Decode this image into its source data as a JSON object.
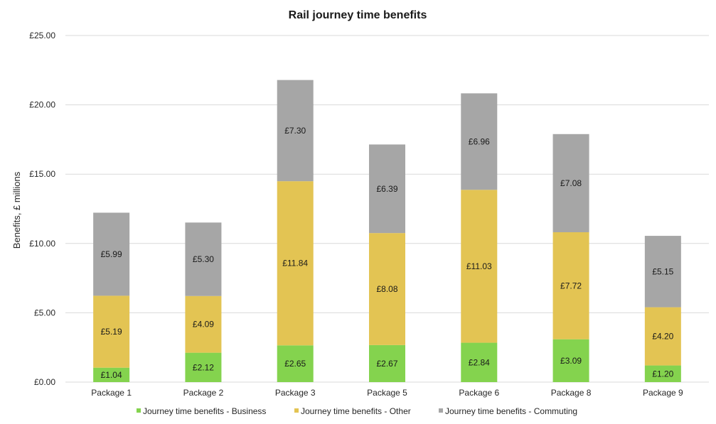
{
  "chart_data": {
    "type": "bar",
    "stacked": true,
    "title": "Rail journey time benefits",
    "xlabel": "",
    "ylabel": "Benefits, £ millions",
    "ylim": [
      0,
      25
    ],
    "yticks": [
      "£0.00",
      "£5.00",
      "£10.00",
      "£15.00",
      "£20.00",
      "£25.00"
    ],
    "ytick_values": [
      0,
      5,
      10,
      15,
      20,
      25
    ],
    "grid": true,
    "legend_position": "bottom",
    "categories": [
      "Package 1",
      "Package 2",
      "Package 3",
      "Package 5",
      "Package 6",
      "Package 8",
      "Package 9"
    ],
    "series": [
      {
        "name": "Journey time benefits - Business",
        "color": "#84d34e",
        "values": [
          1.04,
          2.12,
          2.65,
          2.67,
          2.84,
          3.09,
          1.2
        ],
        "labels": [
          "£1.04",
          "£2.12",
          "£2.65",
          "£2.67",
          "£2.84",
          "£3.09",
          "£1.20"
        ]
      },
      {
        "name": "Journey time benefits - Other",
        "color": "#e3c453",
        "values": [
          5.19,
          4.09,
          11.84,
          8.08,
          11.03,
          7.72,
          4.2
        ],
        "labels": [
          "£5.19",
          "£4.09",
          "£11.84",
          "£8.08",
          "£11.03",
          "£7.72",
          "£4.20"
        ]
      },
      {
        "name": "Journey time benefits - Commuting",
        "color": "#a6a6a6",
        "values": [
          5.99,
          5.3,
          7.3,
          6.39,
          6.96,
          7.08,
          5.15
        ],
        "labels": [
          "£5.99",
          "£5.30",
          "£7.30",
          "£6.39",
          "£6.96",
          "£7.08",
          "£5.15"
        ]
      }
    ]
  }
}
